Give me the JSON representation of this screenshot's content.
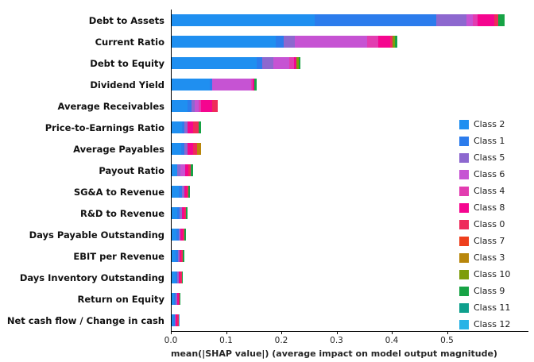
{
  "chart_data": {
    "type": "bar",
    "orientation": "horizontal",
    "stacked": true,
    "title": "",
    "xlabel": "mean(|SHAP value|) (average impact on model output magnitude)",
    "ylabel": "",
    "xlim": [
      0,
      0.64
    ],
    "x_ticks": [
      0.0,
      0.1,
      0.2,
      0.3,
      0.4,
      0.5
    ],
    "x_tick_labels": [
      "0.0",
      "0.1",
      "0.2",
      "0.3",
      "0.4",
      "0.5"
    ],
    "grid": false,
    "legend_position": "right",
    "categories": [
      "Debt to Assets",
      "Current Ratio",
      "Debt to Equity",
      "Dividend Yield",
      "Average Receivables",
      "Price-to-Earnings Ratio",
      "Average Payables",
      "Payout Ratio",
      "SG&A to Revenue",
      "R&D to Revenue",
      "Days Payable Outstanding",
      "EBIT per Revenue",
      "Days Inventory Outstanding",
      "Return on Equity",
      "Net cash flow / Change in cash"
    ],
    "classes": [
      {
        "label": "Class 2",
        "color": "#1f8ff0"
      },
      {
        "label": "Class 1",
        "color": "#2c7cec"
      },
      {
        "label": "Class 5",
        "color": "#8d68cf"
      },
      {
        "label": "Class 6",
        "color": "#c653d3"
      },
      {
        "label": "Class 4",
        "color": "#e23cb0"
      },
      {
        "label": "Class 8",
        "color": "#f5058f"
      },
      {
        "label": "Class 0",
        "color": "#ee2b5b"
      },
      {
        "label": "Class 7",
        "color": "#ee3f1d"
      },
      {
        "label": "Class 3",
        "color": "#b8860b"
      },
      {
        "label": "Class 10",
        "color": "#7d9c0b"
      },
      {
        "label": "Class 9",
        "color": "#17a345"
      },
      {
        "label": "Class 11",
        "color": "#0fa08d"
      },
      {
        "label": "Class 12",
        "color": "#27b3e6"
      }
    ],
    "series": [
      {
        "name": "Class 2",
        "values": [
          0.26,
          0.19,
          0.155,
          0.07,
          0.03,
          0.02,
          0.018,
          0.012,
          0.015,
          0.012,
          0.01,
          0.009,
          0.008,
          0.006,
          0.005
        ]
      },
      {
        "name": "Class 1",
        "values": [
          0.22,
          0.015,
          0.01,
          0.005,
          0.008,
          0.005,
          0.007,
          0.0,
          0.005,
          0.004,
          0.004,
          0.004,
          0.003,
          0.003,
          0.002
        ]
      },
      {
        "name": "Class 5",
        "values": [
          0.055,
          0.02,
          0.02,
          0.0,
          0.005,
          0.005,
          0.005,
          0.006,
          0.004,
          0.004,
          0.003,
          0.003,
          0.003,
          0.002,
          0.002
        ]
      },
      {
        "name": "Class 6",
        "values": [
          0.012,
          0.13,
          0.03,
          0.07,
          0.007,
          0.0,
          0.0,
          0.008,
          0.0,
          0.0,
          0.0,
          0.0,
          0.0,
          0.0,
          0.0
        ]
      },
      {
        "name": "Class 4",
        "values": [
          0.008,
          0.02,
          0.008,
          0.003,
          0.005,
          0.0,
          0.0,
          0.0,
          0.0,
          0.0,
          0.0,
          0.0,
          0.0,
          0.0,
          0.0
        ]
      },
      {
        "name": "Class 8",
        "values": [
          0.03,
          0.022,
          0.005,
          0.003,
          0.02,
          0.01,
          0.01,
          0.006,
          0.005,
          0.004,
          0.004,
          0.003,
          0.003,
          0.003,
          0.003
        ]
      },
      {
        "name": "Class 0",
        "values": [
          0.008,
          0.005,
          0.0,
          0.0,
          0.01,
          0.01,
          0.007,
          0.004,
          0.003,
          0.004,
          0.003,
          0.003,
          0.003,
          0.002,
          0.002
        ]
      },
      {
        "name": "Class 7",
        "values": [
          0.0,
          0.0,
          0.0,
          0.0,
          0.0,
          0.0,
          0.0,
          0.0,
          0.0,
          0.0,
          0.0,
          0.0,
          0.0,
          0.0,
          0.0
        ]
      },
      {
        "name": "Class 3",
        "values": [
          0.0,
          0.0,
          0.0,
          0.0,
          0.0,
          0.0,
          0.008,
          0.0,
          0.0,
          0.0,
          0.0,
          0.0,
          0.0,
          0.0,
          0.0
        ]
      },
      {
        "name": "Class 10",
        "values": [
          0.0,
          0.004,
          0.004,
          0.0,
          0.0,
          0.0,
          0.0,
          0.0,
          0.0,
          0.0,
          0.0,
          0.0,
          0.0,
          0.0,
          0.0
        ]
      },
      {
        "name": "Class 9",
        "values": [
          0.012,
          0.004,
          0.003,
          0.004,
          0.0,
          0.005,
          0.0,
          0.004,
          0.003,
          0.002,
          0.003,
          0.002,
          0.002,
          0.002,
          0.0
        ]
      },
      {
        "name": "Class 11",
        "values": [
          0.0,
          0.0,
          0.0,
          0.0,
          0.0,
          0.0,
          0.0,
          0.0,
          0.0,
          0.0,
          0.0,
          0.0,
          0.0,
          0.0,
          0.0
        ]
      },
      {
        "name": "Class 12",
        "values": [
          0.0,
          0.0,
          0.0,
          0.0,
          0.0,
          0.0,
          0.0,
          0.0,
          0.0,
          0.0,
          0.0,
          0.0,
          0.0,
          0.0,
          0.001
        ]
      }
    ]
  }
}
